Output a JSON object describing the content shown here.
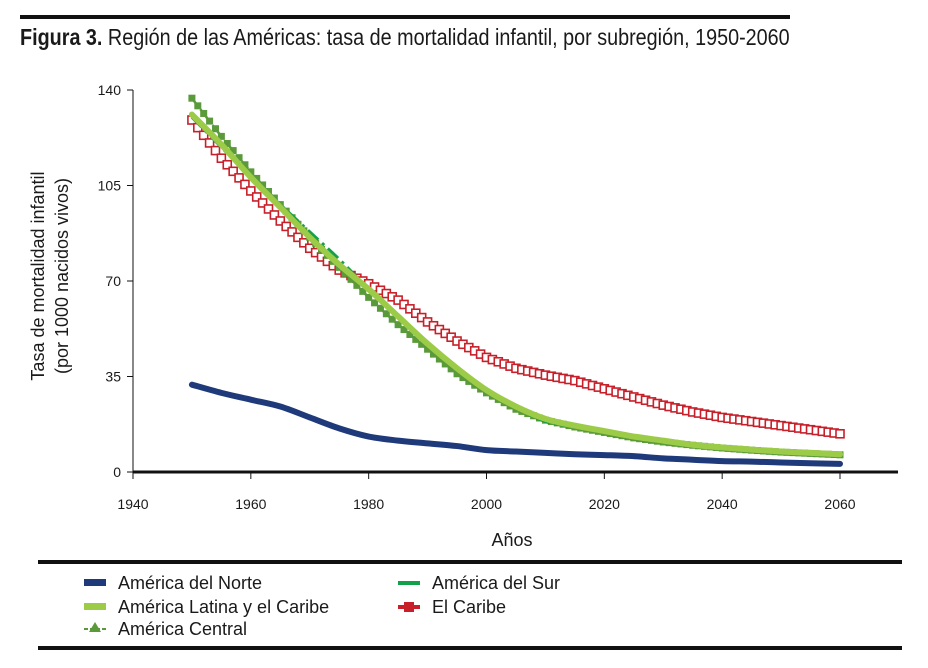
{
  "figure": {
    "label": "Figura 3.",
    "title": "Región de las Américas: tasa de mortalidad infantil, por subregión, 1950-2060"
  },
  "chart_data": {
    "type": "line",
    "xlabel": "Años",
    "ylabel": "Tasa de mortalidad infantil",
    "ylabel2": "(por 1000 nacidos vivos)",
    "xlim": [
      1940,
      2070
    ],
    "ylim": [
      0,
      140
    ],
    "xticks": [
      1940,
      1960,
      1980,
      2000,
      2020,
      2040,
      2060
    ],
    "yticks": [
      0,
      35,
      70,
      105,
      140
    ],
    "legend_position": "bottom",
    "colors": {
      "america_del_norte": "#1f3a7a",
      "america_latina": "#9ccb48",
      "america_central": "#5a9a3a",
      "america_del_sur": "#12a04a",
      "el_caribe": "#c8202a"
    },
    "series": [
      {
        "key": "america_del_norte",
        "name": "América del Norte",
        "x": [
          1950,
          1955,
          1960,
          1965,
          1970,
          1975,
          1980,
          1985,
          1990,
          1995,
          2000,
          2005,
          2010,
          2015,
          2020,
          2025,
          2030,
          2035,
          2040,
          2045,
          2050,
          2055,
          2060
        ],
        "y": [
          32,
          29,
          26.5,
          24,
          20,
          16,
          13,
          11.5,
          10.5,
          9.5,
          8,
          7.5,
          7,
          6.5,
          6.2,
          5.8,
          5,
          4.5,
          4,
          3.8,
          3.5,
          3.2,
          3
        ]
      },
      {
        "key": "america_latina",
        "name": "América Latina y el Caribe",
        "x": [
          1950,
          1955,
          1960,
          1965,
          1970,
          1975,
          1980,
          1985,
          1990,
          1995,
          2000,
          2005,
          2010,
          2015,
          2020,
          2025,
          2030,
          2035,
          2040,
          2045,
          2050,
          2055,
          2060
        ],
        "y": [
          131,
          120,
          108,
          97,
          86,
          76,
          67,
          57,
          47,
          38,
          30,
          24,
          19.5,
          17,
          15,
          13,
          11.5,
          10,
          9,
          8.2,
          7.5,
          7,
          6.5
        ]
      },
      {
        "key": "america_central",
        "name": "América Central",
        "x": [
          1950,
          1955,
          1960,
          1965,
          1970,
          1975,
          1980,
          1985,
          1990,
          1995,
          2000,
          2005,
          2010,
          2015,
          2020,
          2025,
          2030,
          2035,
          2040,
          2045,
          2050,
          2055,
          2060
        ],
        "y": [
          137,
          123,
          110,
          98,
          86,
          75,
          64,
          54,
          45,
          36,
          29,
          23,
          19,
          16.5,
          14.5,
          12.5,
          11,
          9.8,
          8.8,
          8,
          7.3,
          6.8,
          6.3
        ]
      },
      {
        "key": "america_del_sur",
        "name": "América del Sur",
        "x": [
          1950,
          1955,
          1960,
          1965,
          1970,
          1975,
          1980,
          1985,
          1990,
          1995,
          2000,
          2005,
          2010,
          2015,
          2020,
          2025,
          2030,
          2035,
          2040,
          2045,
          2050,
          2055,
          2060
        ],
        "y": [
          130,
          119,
          108,
          98,
          88,
          78,
          67,
          57,
          47,
          38,
          30,
          23.5,
          18.5,
          16.5,
          14.5,
          12.8,
          11.3,
          10,
          9,
          8.2,
          7.5,
          7,
          6.5
        ]
      },
      {
        "key": "el_caribe",
        "name": "El Caribe",
        "x": [
          1950,
          1955,
          1960,
          1965,
          1970,
          1975,
          1980,
          1985,
          1990,
          1995,
          2000,
          2005,
          2010,
          2015,
          2020,
          2025,
          2030,
          2035,
          2040,
          2045,
          2050,
          2055,
          2060
        ],
        "y": [
          129,
          115,
          103,
          92,
          82,
          74,
          69,
          63,
          55,
          48,
          42,
          38,
          35.5,
          33.5,
          30.5,
          27.5,
          24.5,
          22,
          20,
          18.5,
          17,
          15.5,
          14
        ]
      }
    ]
  }
}
